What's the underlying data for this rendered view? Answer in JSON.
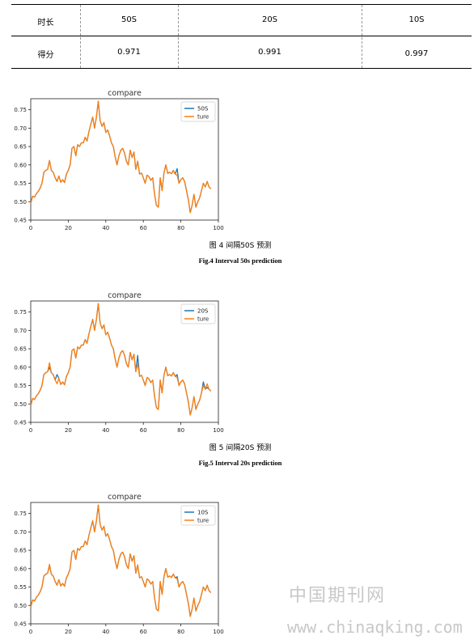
{
  "table": {
    "headers": [
      "时长",
      "50S",
      "20S",
      "10S"
    ],
    "row": [
      "得分",
      "0.971",
      "0.991",
      "0.997"
    ]
  },
  "figures": [
    {
      "caption_cn": "图 4  间隔50S 预测",
      "caption_en": "Fig.4   Interval 50s prediction",
      "chart_data": {
        "type": "line",
        "title": "compare",
        "xlim": [
          0,
          100
        ],
        "ylim": [
          0.45,
          0.78
        ],
        "xticks": [
          "0",
          "20",
          "40",
          "60",
          "80",
          "100"
        ],
        "yticks": [
          "0.45",
          "0.50",
          "0.55",
          "0.60",
          "0.65",
          "0.70",
          "0.75"
        ],
        "legend_position": "top-right",
        "series": [
          {
            "name": "50S",
            "color": "#1f77b4",
            "values": [
              0.495,
              0.515,
              0.512,
              0.522,
              0.528,
              0.537,
              0.55,
              0.58,
              0.585,
              0.588,
              0.612,
              0.585,
              0.58,
              0.565,
              0.555,
              0.57,
              0.553,
              0.56,
              0.552,
              0.575,
              0.585,
              0.6,
              0.645,
              0.65,
              0.625,
              0.655,
              0.65,
              0.66,
              0.66,
              0.675,
              0.665,
              0.69,
              0.71,
              0.73,
              0.7,
              0.73,
              0.773,
              0.72,
              0.705,
              0.715,
              0.688,
              0.695,
              0.68,
              0.66,
              0.65,
              0.622,
              0.6,
              0.625,
              0.64,
              0.645,
              0.632,
              0.61,
              0.6,
              0.64,
              0.62,
              0.635,
              0.588,
              0.61,
              0.575,
              0.578,
              0.565,
              0.55,
              0.572,
              0.568,
              0.558,
              0.565,
              0.52,
              0.49,
              0.485,
              0.565,
              0.53,
              0.578,
              0.6,
              0.577,
              0.58,
              0.576,
              0.585,
              0.575,
              0.59,
              0.55,
              0.56,
              0.565,
              0.555,
              0.53,
              0.505,
              0.47,
              0.49,
              0.52,
              0.485,
              0.5,
              0.51,
              0.53,
              0.55,
              0.54,
              0.555,
              0.54,
              0.535
            ]
          },
          {
            "name": "ture",
            "color": "#ff7f0e",
            "values": [
              0.495,
              0.515,
              0.512,
              0.522,
              0.528,
              0.537,
              0.55,
              0.58,
              0.585,
              0.588,
              0.612,
              0.585,
              0.58,
              0.565,
              0.555,
              0.57,
              0.553,
              0.56,
              0.552,
              0.575,
              0.585,
              0.6,
              0.645,
              0.65,
              0.625,
              0.655,
              0.65,
              0.66,
              0.66,
              0.675,
              0.665,
              0.69,
              0.71,
              0.73,
              0.7,
              0.73,
              0.773,
              0.72,
              0.705,
              0.715,
              0.688,
              0.695,
              0.68,
              0.66,
              0.65,
              0.622,
              0.6,
              0.625,
              0.64,
              0.645,
              0.632,
              0.61,
              0.6,
              0.64,
              0.62,
              0.635,
              0.588,
              0.61,
              0.575,
              0.578,
              0.565,
              0.55,
              0.572,
              0.568,
              0.558,
              0.565,
              0.52,
              0.49,
              0.485,
              0.565,
              0.53,
              0.578,
              0.6,
              0.577,
              0.58,
              0.576,
              0.585,
              0.575,
              0.572,
              0.55,
              0.56,
              0.565,
              0.555,
              0.53,
              0.505,
              0.47,
              0.49,
              0.52,
              0.485,
              0.5,
              0.51,
              0.53,
              0.55,
              0.54,
              0.555,
              0.54,
              0.535
            ]
          }
        ]
      }
    },
    {
      "caption_cn": "图 5  间隔20S 预测",
      "caption_en": "Fig.5   Interval 20s prediction",
      "chart_data": {
        "type": "line",
        "title": "compare",
        "xlim": [
          0,
          100
        ],
        "ylim": [
          0.45,
          0.78
        ],
        "xticks": [
          "0",
          "20",
          "40",
          "60",
          "80",
          "100"
        ],
        "yticks": [
          "0.45",
          "0.50",
          "0.55",
          "0.60",
          "0.65",
          "0.70",
          "0.75"
        ],
        "legend_position": "top-right",
        "series": [
          {
            "name": "20S",
            "color": "#1f77b4",
            "values": [
              0.495,
              0.515,
              0.512,
              0.522,
              0.528,
              0.537,
              0.55,
              0.58,
              0.585,
              0.588,
              0.6,
              0.585,
              0.58,
              0.565,
              0.58,
              0.57,
              0.553,
              0.56,
              0.552,
              0.575,
              0.585,
              0.6,
              0.645,
              0.65,
              0.625,
              0.655,
              0.65,
              0.66,
              0.66,
              0.675,
              0.665,
              0.69,
              0.71,
              0.73,
              0.7,
              0.73,
              0.773,
              0.72,
              0.705,
              0.715,
              0.688,
              0.695,
              0.68,
              0.66,
              0.65,
              0.622,
              0.6,
              0.625,
              0.64,
              0.645,
              0.632,
              0.61,
              0.6,
              0.64,
              0.62,
              0.635,
              0.588,
              0.632,
              0.575,
              0.578,
              0.565,
              0.55,
              0.572,
              0.568,
              0.558,
              0.565,
              0.52,
              0.49,
              0.485,
              0.565,
              0.53,
              0.578,
              0.6,
              0.577,
              0.58,
              0.576,
              0.585,
              0.575,
              0.58,
              0.55,
              0.56,
              0.565,
              0.555,
              0.53,
              0.505,
              0.47,
              0.49,
              0.52,
              0.485,
              0.5,
              0.51,
              0.53,
              0.56,
              0.54,
              0.545,
              0.54,
              0.535
            ]
          },
          {
            "name": "ture",
            "color": "#ff7f0e",
            "values": [
              0.495,
              0.515,
              0.512,
              0.522,
              0.528,
              0.537,
              0.55,
              0.58,
              0.585,
              0.588,
              0.612,
              0.585,
              0.58,
              0.565,
              0.555,
              0.57,
              0.553,
              0.56,
              0.552,
              0.575,
              0.585,
              0.6,
              0.645,
              0.65,
              0.625,
              0.655,
              0.65,
              0.66,
              0.66,
              0.675,
              0.665,
              0.69,
              0.71,
              0.73,
              0.7,
              0.73,
              0.773,
              0.72,
              0.705,
              0.715,
              0.688,
              0.695,
              0.68,
              0.66,
              0.65,
              0.622,
              0.6,
              0.625,
              0.64,
              0.645,
              0.632,
              0.61,
              0.6,
              0.64,
              0.62,
              0.635,
              0.588,
              0.61,
              0.575,
              0.578,
              0.565,
              0.55,
              0.572,
              0.568,
              0.558,
              0.565,
              0.52,
              0.49,
              0.485,
              0.565,
              0.53,
              0.578,
              0.6,
              0.577,
              0.58,
              0.576,
              0.585,
              0.575,
              0.572,
              0.55,
              0.56,
              0.565,
              0.555,
              0.53,
              0.505,
              0.47,
              0.49,
              0.52,
              0.485,
              0.5,
              0.51,
              0.53,
              0.55,
              0.54,
              0.555,
              0.54,
              0.535
            ]
          }
        ]
      }
    },
    {
      "caption_cn": "",
      "caption_en": "",
      "chart_data": {
        "type": "line",
        "title": "compare",
        "xlim": [
          0,
          100
        ],
        "ylim": [
          0.45,
          0.78
        ],
        "xticks": [
          "0",
          "20",
          "40",
          "60",
          "80",
          "100"
        ],
        "yticks": [
          "0.45",
          "0.50",
          "0.55",
          "0.60",
          "0.65",
          "0.70",
          "0.75"
        ],
        "legend_position": "top-right",
        "series": [
          {
            "name": "10S",
            "color": "#1f77b4",
            "values": [
              0.495,
              0.515,
              0.512,
              0.522,
              0.528,
              0.537,
              0.55,
              0.58,
              0.585,
              0.588,
              0.608,
              0.585,
              0.58,
              0.565,
              0.555,
              0.57,
              0.553,
              0.56,
              0.552,
              0.575,
              0.585,
              0.6,
              0.645,
              0.65,
              0.625,
              0.655,
              0.65,
              0.66,
              0.66,
              0.675,
              0.665,
              0.69,
              0.71,
              0.73,
              0.7,
              0.73,
              0.773,
              0.72,
              0.705,
              0.715,
              0.688,
              0.695,
              0.68,
              0.66,
              0.65,
              0.622,
              0.6,
              0.625,
              0.64,
              0.645,
              0.632,
              0.61,
              0.6,
              0.64,
              0.62,
              0.635,
              0.588,
              0.61,
              0.575,
              0.578,
              0.565,
              0.55,
              0.572,
              0.568,
              0.558,
              0.565,
              0.52,
              0.49,
              0.485,
              0.565,
              0.53,
              0.578,
              0.6,
              0.577,
              0.58,
              0.576,
              0.585,
              0.575,
              0.578,
              0.55,
              0.56,
              0.565,
              0.555,
              0.53,
              0.505,
              0.47,
              0.49,
              0.52,
              0.485,
              0.5,
              0.51,
              0.53,
              0.55,
              0.54,
              0.555,
              0.54,
              0.535
            ]
          },
          {
            "name": "ture",
            "color": "#ff7f0e",
            "values": [
              0.495,
              0.515,
              0.512,
              0.522,
              0.528,
              0.537,
              0.55,
              0.58,
              0.585,
              0.588,
              0.612,
              0.585,
              0.58,
              0.565,
              0.555,
              0.57,
              0.553,
              0.56,
              0.552,
              0.575,
              0.585,
              0.6,
              0.645,
              0.65,
              0.625,
              0.655,
              0.65,
              0.66,
              0.66,
              0.675,
              0.665,
              0.69,
              0.71,
              0.73,
              0.7,
              0.73,
              0.773,
              0.72,
              0.705,
              0.715,
              0.688,
              0.695,
              0.68,
              0.66,
              0.65,
              0.622,
              0.6,
              0.625,
              0.64,
              0.645,
              0.632,
              0.61,
              0.6,
              0.64,
              0.62,
              0.635,
              0.588,
              0.61,
              0.575,
              0.578,
              0.565,
              0.55,
              0.572,
              0.568,
              0.558,
              0.565,
              0.52,
              0.49,
              0.485,
              0.565,
              0.53,
              0.578,
              0.6,
              0.577,
              0.58,
              0.576,
              0.585,
              0.575,
              0.572,
              0.55,
              0.56,
              0.565,
              0.555,
              0.53,
              0.505,
              0.47,
              0.49,
              0.52,
              0.485,
              0.5,
              0.51,
              0.53,
              0.55,
              0.54,
              0.555,
              0.54,
              0.535
            ]
          }
        ]
      }
    }
  ],
  "watermark": {
    "cn": "中国期刊网",
    "url": "www.chinaqking.com"
  }
}
